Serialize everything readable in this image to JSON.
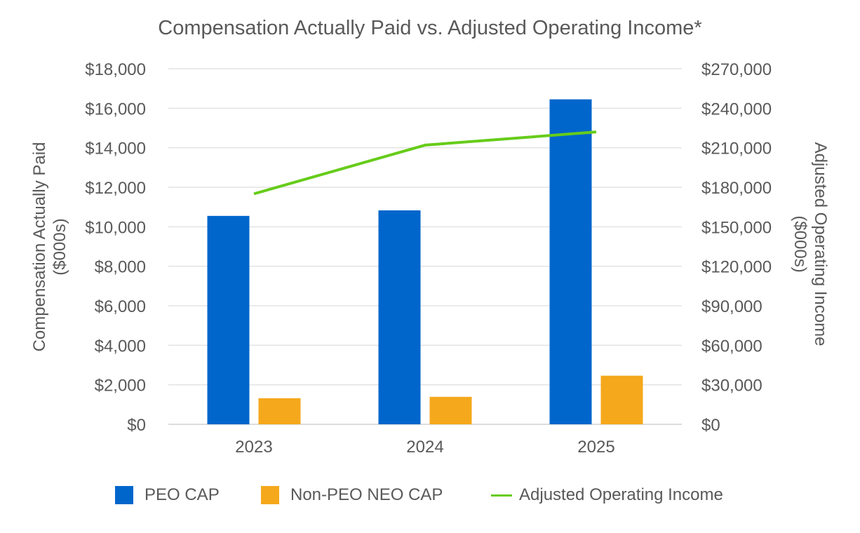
{
  "chart_data": {
    "type": "bar",
    "title": "Compensation Actually Paid vs. Adjusted Operating Income*",
    "categories": [
      "2023",
      "2024",
      "2025"
    ],
    "series": [
      {
        "name": "PEO CAP",
        "type": "bar",
        "axis": "left",
        "color": "#0066CC",
        "values": [
          10550,
          10830,
          16450
        ]
      },
      {
        "name": "Non-PEO NEO CAP",
        "type": "bar",
        "axis": "left",
        "color": "#F5A81C",
        "values": [
          1320,
          1390,
          2460
        ]
      },
      {
        "name": "Adjusted Operating Income",
        "type": "line",
        "axis": "right",
        "color": "#66CC1A",
        "values": [
          175000,
          212000,
          222000
        ]
      }
    ],
    "ylabel": "Compensation Actually Paid\n($000s)",
    "y2label": "Adjusted Operating Income\n($000s)",
    "ylim": [
      0,
      18000
    ],
    "y2lim": [
      0,
      270000
    ],
    "yticks": [
      "$0",
      "$2,000",
      "$4,000",
      "$6,000",
      "$8,000",
      "$10,000",
      "$12,000",
      "$14,000",
      "$16,000",
      "$18,000"
    ],
    "y2ticks": [
      "$0",
      "$30,000",
      "$60,000",
      "$90,000",
      "$120,000",
      "$150,000",
      "$180,000",
      "$210,000",
      "$240,000",
      "$270,000"
    ],
    "grid": true,
    "legend_position": "bottom"
  }
}
